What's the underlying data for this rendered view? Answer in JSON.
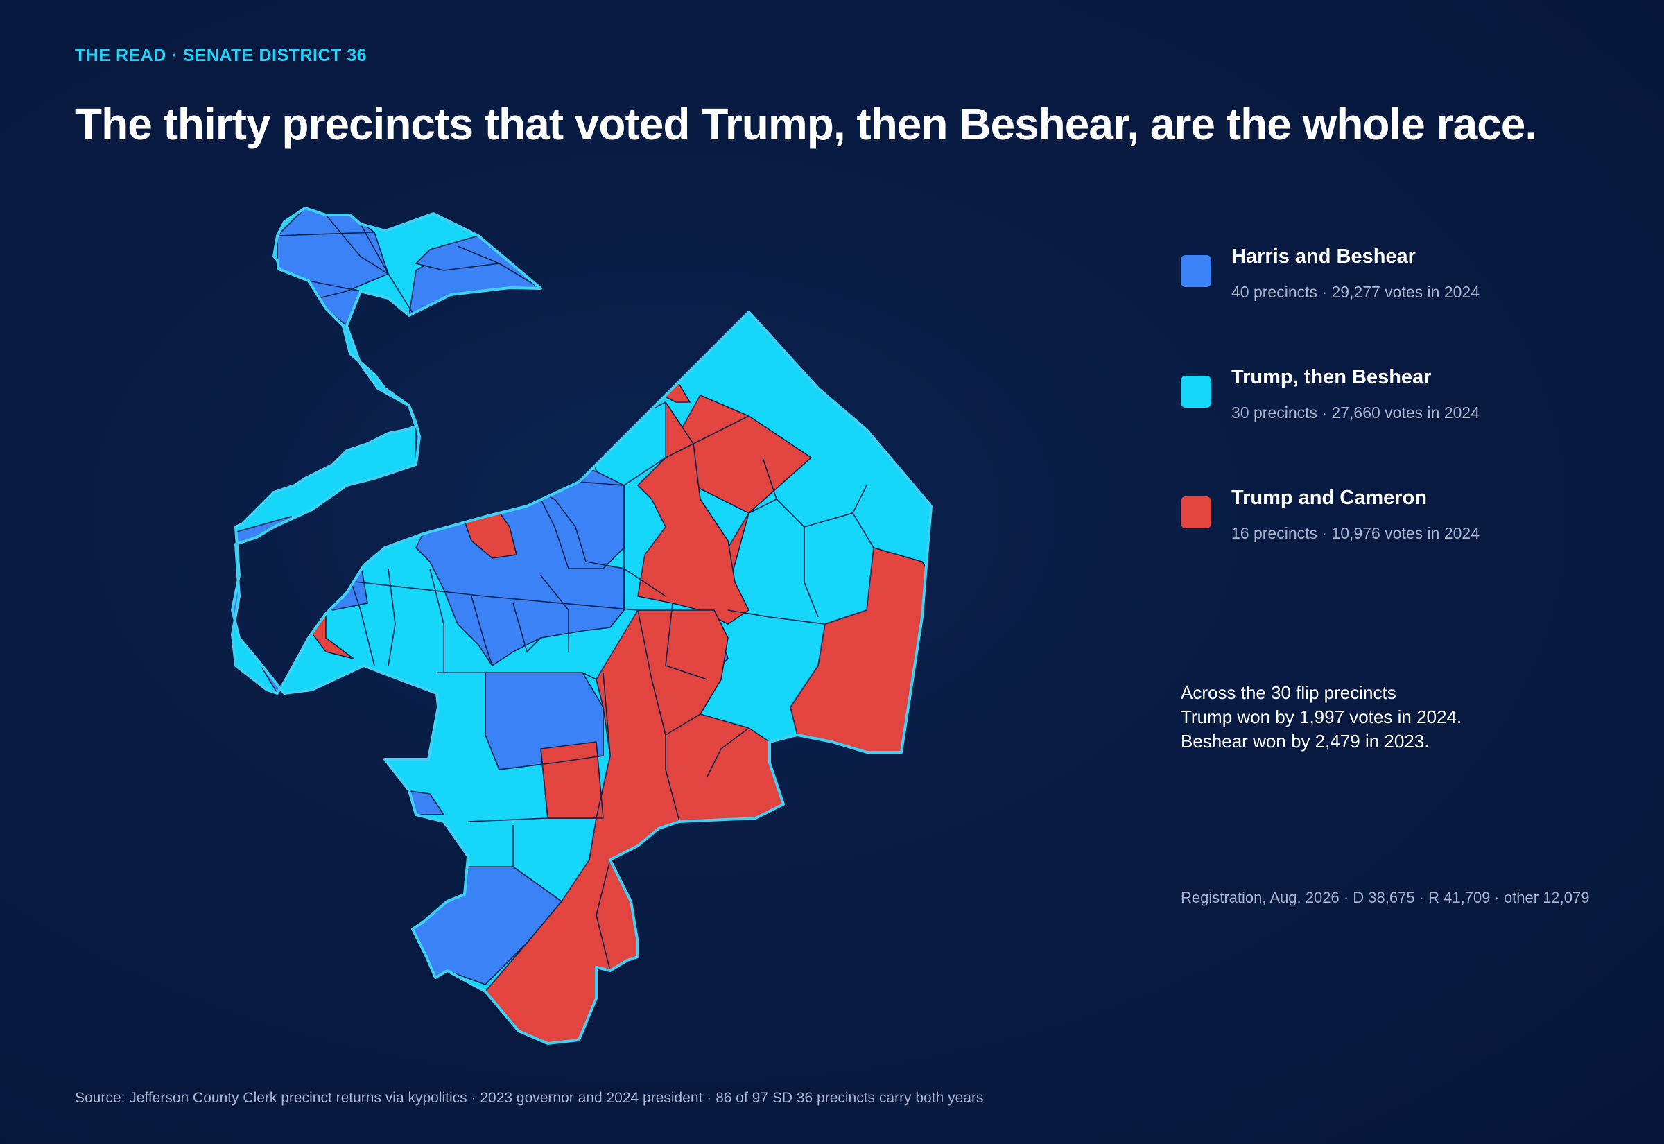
{
  "header": {
    "kicker": "THE READ · SENATE DISTRICT 36",
    "headline": "The thirty precincts that voted Trump, then Beshear, are the whole race."
  },
  "colors": {
    "harris_beshear": "#3b82f6",
    "trump_then_beshear": "#16d6fa",
    "trump_cameron": "#e2453f",
    "district_outline": "#3fd0f3",
    "precinct_border": "#0d2450"
  },
  "legend": {
    "items": [
      {
        "key": "harris_beshear",
        "title": "Harris and Beshear",
        "subtitle": "40 precincts · 29,277 votes in 2024",
        "precincts": 40,
        "votes_2024": 29277
      },
      {
        "key": "trump_then_beshear",
        "title": "Trump, then Beshear",
        "subtitle": "30 precincts · 27,660 votes in 2024",
        "precincts": 30,
        "votes_2024": 27660
      },
      {
        "key": "trump_cameron",
        "title": "Trump and Cameron",
        "subtitle": "16 precincts · 10,976 votes in 2024",
        "precincts": 16,
        "votes_2024": 10976
      }
    ]
  },
  "note": {
    "line1": "Across the 30 flip precincts",
    "line2": "Trump won by 1,997 votes in 2024.",
    "line3": "Beshear won by 2,479 in 2023."
  },
  "registration": "Registration, Aug. 2026 · D 38,675 · R 41,709 · other 12,079",
  "source": "Source: Jefferson County Clerk precinct returns via kypolitics · 2023 governor and 2024 president · 86 of 97 SD 36 precincts carry both years"
}
